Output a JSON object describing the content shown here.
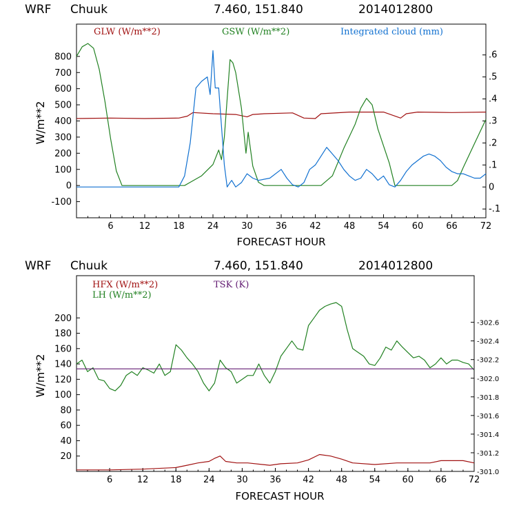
{
  "chart_data": [
    {
      "type": "line",
      "header": {
        "model": "WRF",
        "station": "Chuuk",
        "coords": "7.460, 151.840",
        "run": "2014012800"
      },
      "xlabel": "FORECAST HOUR",
      "ylabel": "W/m**2",
      "xlim": [
        0,
        72
      ],
      "ylim": [
        -200,
        1000
      ],
      "xticks": [
        6,
        12,
        18,
        24,
        30,
        36,
        42,
        48,
        54,
        60,
        66,
        72
      ],
      "yticks": [
        -100,
        0,
        100,
        200,
        300,
        400,
        500,
        600,
        700,
        800
      ],
      "y2lim": [
        -0.14,
        0.74
      ],
      "y2ticks": [
        -0.1,
        0,
        0.1,
        0.2,
        0.3,
        0.4,
        0.5,
        0.6
      ],
      "y2ticklabels": [
        "-.1",
        "0",
        ".1",
        ".2",
        ".3",
        ".4",
        ".5",
        ".6"
      ],
      "series": [
        {
          "name": "GLW (W/m**2)",
          "axis": "left",
          "color": "#a01010",
          "x": [
            0,
            6,
            12,
            18,
            19.5,
            20.5,
            24,
            28,
            30,
            31,
            33,
            38,
            40,
            42,
            43,
            48,
            54,
            57,
            58,
            60,
            66,
            72
          ],
          "y": [
            415,
            418,
            415,
            418,
            430,
            452,
            445,
            440,
            425,
            440,
            445,
            450,
            418,
            415,
            445,
            455,
            455,
            418,
            445,
            455,
            452,
            455
          ]
        },
        {
          "name": "GSW (W/m**2)",
          "axis": "left",
          "color": "#208020",
          "x": [
            0,
            1,
            2,
            3,
            4,
            5,
            6,
            7,
            8,
            19,
            20,
            22,
            24,
            25,
            25.5,
            26,
            27,
            27.5,
            28,
            29,
            29.8,
            30.2,
            31,
            32,
            33,
            43,
            45,
            47,
            49,
            50,
            51,
            52,
            53,
            55,
            56,
            66,
            67,
            68,
            70,
            72
          ],
          "y": [
            800,
            860,
            880,
            850,
            720,
            520,
            290,
            90,
            0,
            0,
            20,
            60,
            130,
            220,
            160,
            300,
            780,
            760,
            700,
            480,
            200,
            330,
            120,
            20,
            0,
            0,
            60,
            230,
            380,
            480,
            540,
            500,
            350,
            140,
            0,
            0,
            30,
            110,
            260,
            410
          ]
        },
        {
          "name": "Integrated cloud (mm)",
          "axis": "right",
          "color": "#1070d0",
          "x": [
            0,
            18,
            19,
            20,
            21,
            22,
            23,
            23.5,
            24,
            24.4,
            25,
            26,
            26.5,
            27,
            27.3,
            28,
            29,
            30,
            31,
            32,
            34,
            36,
            37,
            38,
            39,
            40,
            41,
            42,
            43,
            44,
            45,
            46,
            47,
            48,
            49,
            50,
            51,
            52,
            53,
            54,
            55,
            56,
            57,
            58,
            59,
            60,
            61,
            62,
            63,
            64,
            65,
            66,
            67,
            68,
            69,
            70,
            71,
            72
          ],
          "y": [
            0,
            0,
            0.05,
            0.2,
            0.45,
            0.48,
            0.5,
            0.42,
            0.62,
            0.45,
            0.45,
            0.1,
            0,
            0.02,
            0.03,
            0,
            0.02,
            0.06,
            0.04,
            0.03,
            0.04,
            0.08,
            0.04,
            0.01,
            0,
            0.02,
            0.08,
            0.1,
            0.14,
            0.18,
            0.15,
            0.12,
            0.08,
            0.05,
            0.03,
            0.04,
            0.08,
            0.06,
            0.03,
            0.05,
            0.01,
            0,
            0.03,
            0.07,
            0.1,
            0.12,
            0.14,
            0.15,
            0.14,
            0.12,
            0.09,
            0.07,
            0.06,
            0.06,
            0.05,
            0.04,
            0.04,
            0.06
          ]
        }
      ]
    },
    {
      "type": "line",
      "header": {
        "model": "WRF",
        "station": "Chuuk",
        "coords": "7.460, 151.840",
        "run": "2014012800"
      },
      "xlabel": "FORECAST HOUR",
      "ylabel": "W/m**2",
      "xlim": [
        0,
        72
      ],
      "ylim": [
        0,
        255
      ],
      "xticks": [
        6,
        12,
        18,
        24,
        30,
        36,
        42,
        48,
        54,
        60,
        66,
        72
      ],
      "yticks": [
        20,
        40,
        60,
        80,
        100,
        120,
        140,
        160,
        180,
        200
      ],
      "y2lim": [
        301.0,
        303.1
      ],
      "y2ticks": [
        301.0,
        301.2,
        301.4,
        301.6,
        301.8,
        302.0,
        302.2,
        302.4,
        302.6
      ],
      "y2ticklabels": [
        "301.0",
        "301.2",
        "301.4",
        "301.6",
        "301.8",
        "302.0",
        "302.2",
        "302.4",
        "302.6"
      ],
      "series": [
        {
          "name": "HFX (W/m**2)",
          "axis": "left",
          "color": "#a01010",
          "x": [
            0,
            6,
            12,
            18,
            20,
            22,
            24,
            25,
            26,
            27,
            29,
            31,
            35,
            37,
            40,
            42,
            44,
            46,
            48,
            50,
            54,
            58,
            64,
            66,
            70,
            72
          ],
          "y": [
            2,
            2,
            3,
            5,
            8,
            11,
            13,
            17,
            20,
            13,
            11,
            11,
            8,
            10,
            11,
            15,
            22,
            20,
            16,
            11,
            9,
            11,
            11,
            14,
            14,
            11
          ]
        },
        {
          "name": "LH (W/m**2)",
          "axis": "left",
          "color": "#208020",
          "x": [
            0,
            1,
            2,
            3,
            4,
            5,
            6,
            7,
            8,
            9,
            10,
            11,
            12,
            13,
            14,
            15,
            16,
            17,
            18,
            19,
            20,
            21,
            22,
            23,
            24,
            25,
            26,
            27,
            28,
            29,
            30,
            31,
            32,
            33,
            34,
            35,
            36,
            37,
            38,
            39,
            40,
            41,
            42,
            43,
            44,
            45,
            46,
            47,
            48,
            49,
            50,
            51,
            52,
            53,
            54,
            55,
            56,
            57,
            58,
            59,
            60,
            61,
            62,
            63,
            64,
            65,
            66,
            67,
            68,
            69,
            70,
            71,
            72
          ],
          "y": [
            140,
            145,
            130,
            135,
            120,
            118,
            108,
            105,
            112,
            125,
            130,
            125,
            135,
            132,
            128,
            140,
            125,
            130,
            165,
            158,
            148,
            140,
            130,
            115,
            105,
            115,
            145,
            135,
            130,
            115,
            120,
            125,
            125,
            140,
            125,
            115,
            130,
            150,
            160,
            170,
            160,
            158,
            190,
            200,
            210,
            215,
            218,
            220,
            215,
            185,
            160,
            155,
            150,
            140,
            138,
            148,
            162,
            158,
            170,
            162,
            155,
            148,
            150,
            145,
            135,
            140,
            148,
            140,
            145,
            145,
            142,
            140,
            132
          ]
        },
        {
          "name": "TSK (K)",
          "axis": "right",
          "color": "#601870",
          "x": [
            0,
            72
          ],
          "y": [
            302.1,
            302.1
          ]
        }
      ]
    }
  ]
}
